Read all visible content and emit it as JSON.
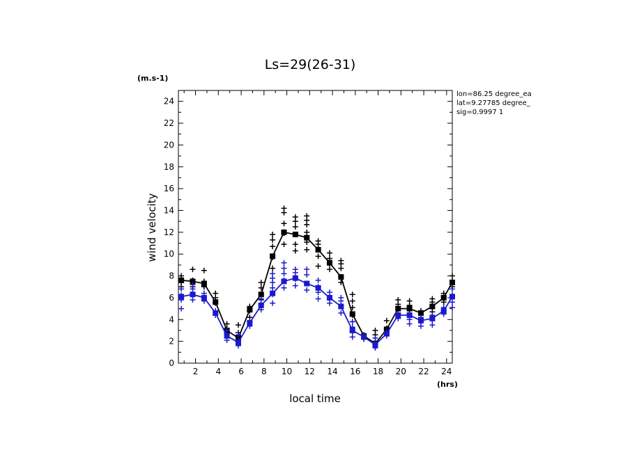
{
  "chart_data": {
    "type": "line",
    "title": "Ls=29(26-31)",
    "y_unit": "(m.s-1)",
    "x_unit": "(hrs)",
    "xlabel": "local time",
    "ylabel": "wind velocity",
    "xlim": [
      0.5,
      24.5
    ],
    "ylim": [
      0,
      25
    ],
    "x_ticks": [
      2,
      4,
      6,
      8,
      10,
      12,
      14,
      16,
      18,
      20,
      22,
      24
    ],
    "y_ticks": [
      0,
      2,
      4,
      6,
      8,
      10,
      12,
      14,
      16,
      18,
      20,
      22,
      24
    ],
    "info": [
      "lon=86.25 degree_ea",
      "lat=9.27785 degree_",
      "sig=0.9997 1"
    ],
    "x": [
      0.75,
      1.75,
      2.75,
      3.75,
      4.75,
      5.75,
      6.75,
      7.75,
      8.75,
      9.75,
      10.75,
      11.75,
      12.75,
      13.75,
      14.75,
      15.75,
      16.75,
      17.75,
      18.75,
      19.75,
      20.75,
      21.75,
      22.75,
      23.75,
      24.5
    ],
    "series": [
      {
        "color": "#000000",
        "values": [
          7.6,
          7.5,
          7.3,
          5.6,
          3.0,
          2.3,
          4.9,
          6.3,
          9.8,
          12.0,
          11.8,
          11.5,
          10.4,
          9.2,
          7.9,
          4.5,
          2.5,
          1.8,
          3.1,
          5.0,
          5.0,
          4.6,
          5.2,
          6.0,
          7.4
        ],
        "spread": [
          [
            7.0,
            7.4,
            8.0
          ],
          [
            7.0,
            7.6,
            8.6
          ],
          [
            7.0,
            7.5,
            8.5
          ],
          [
            5.5,
            6.0,
            6.4
          ],
          [
            2.7,
            3.2,
            3.6
          ],
          [
            1.9,
            2.3,
            2.8,
            3.5
          ],
          [
            4.2,
            4.8,
            5.2
          ],
          [
            5.8,
            6.3,
            6.9,
            7.4
          ],
          [
            8.7,
            9.7,
            10.7,
            11.3,
            11.8
          ],
          [
            10.9,
            11.9,
            12.8,
            13.8,
            14.2
          ],
          [
            10.3,
            10.9,
            11.8,
            12.5,
            13.0,
            13.4
          ],
          [
            10.4,
            11.1,
            12.0,
            12.7,
            13.1,
            13.5
          ],
          [
            8.9,
            9.8,
            10.4,
            10.9,
            11.2
          ],
          [
            8.6,
            9.1,
            9.6,
            10.1
          ],
          [
            7.4,
            7.9,
            8.7,
            9.1,
            9.4
          ],
          [
            3.8,
            4.4,
            5.1,
            5.7,
            6.3
          ],
          [
            2.3,
            2.6
          ],
          [
            1.5,
            2.0,
            2.6,
            3.0
          ],
          [
            2.8,
            3.2,
            3.9
          ],
          [
            4.6,
            5.0,
            5.4,
            5.8
          ],
          [
            4.5,
            4.9,
            5.3,
            5.7
          ],
          [
            4.4,
            4.8
          ],
          [
            4.7,
            5.1,
            5.6,
            5.9
          ],
          [
            5.6,
            6.1,
            6.4
          ],
          [
            7.0,
            7.5,
            8.0
          ]
        ]
      },
      {
        "color": "#1a1acc",
        "values": [
          6.1,
          6.3,
          6.0,
          4.6,
          2.5,
          1.9,
          3.7,
          5.3,
          6.4,
          7.5,
          7.8,
          7.3,
          6.9,
          6.0,
          5.2,
          3.0,
          2.4,
          1.7,
          2.7,
          4.4,
          4.4,
          3.9,
          4.1,
          4.8,
          6.1
        ],
        "spread": [
          [
            5.0,
            5.8,
            6.2,
            6.8
          ],
          [
            5.8,
            6.3,
            6.8,
            7.2
          ],
          [
            5.7,
            6.0,
            6.4
          ],
          [
            4.4,
            4.8
          ],
          [
            2.1,
            2.6,
            3.0
          ],
          [
            1.6,
            2.0,
            2.6
          ],
          [
            3.4,
            3.8
          ],
          [
            4.9,
            5.4,
            5.9
          ],
          [
            5.5,
            6.3,
            6.9,
            7.4,
            7.8,
            8.2
          ],
          [
            6.9,
            7.6,
            8.2,
            8.7,
            9.2
          ],
          [
            7.1,
            7.7,
            8.3,
            8.6
          ],
          [
            6.7,
            7.3,
            8.1,
            8.6
          ],
          [
            5.9,
            6.5,
            7.0,
            7.6
          ],
          [
            5.5,
            6.0,
            6.5
          ],
          [
            4.6,
            5.2,
            5.7,
            6.0
          ],
          [
            2.4,
            2.9,
            3.3,
            3.8
          ],
          [
            2.2,
            2.5
          ],
          [
            1.4,
            1.8,
            2.3
          ],
          [
            2.5,
            2.9
          ],
          [
            4.1,
            4.5
          ],
          [
            3.6,
            4.0,
            4.5
          ],
          [
            3.4,
            3.8,
            4.2
          ],
          [
            3.5,
            3.9,
            4.4
          ],
          [
            4.5,
            4.8,
            5.1
          ],
          [
            5.1,
            5.6,
            6.2,
            6.8
          ]
        ]
      }
    ]
  }
}
